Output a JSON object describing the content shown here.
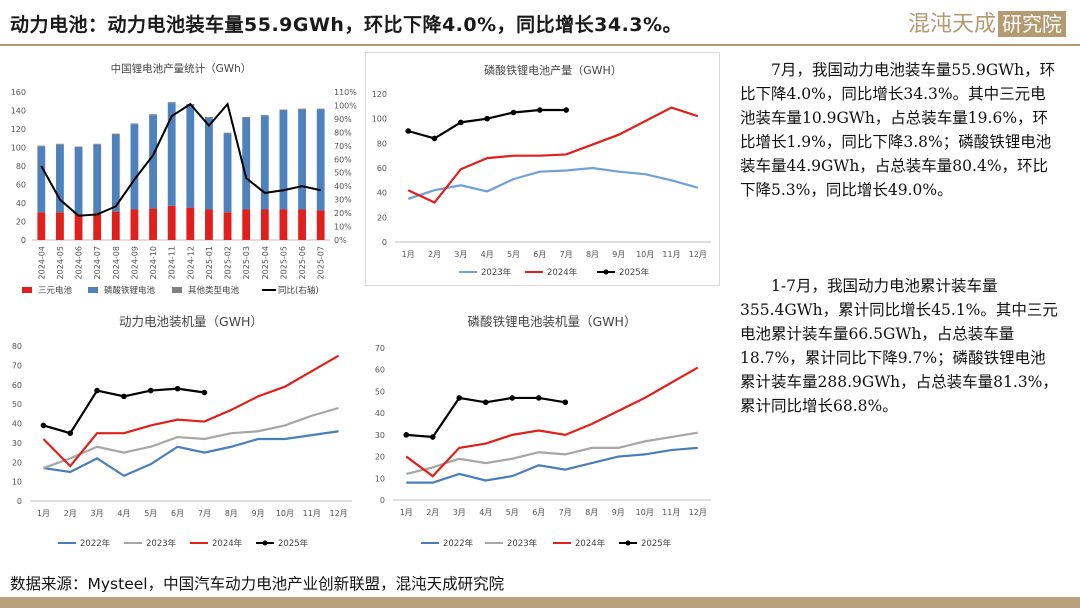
{
  "header": {
    "title": "动力电池：动力电池装车量55.9GWh，环比下降4.0%，同比增长34.3%。"
  },
  "logo": {
    "text": "混沌天成",
    "boxed": "研究院",
    "color": "#b39a70"
  },
  "commentary": {
    "p1": "7月，我国动力电池装车量55.9GWh，环比下降4.0%，同比增长34.3%。其中三元电池装车量10.9GWh，占总装车量19.6%，环比增长1.9%，同比下降3.8%；磷酸铁锂电池装车量44.9GWh，占总装车量80.4%，环比下降5.3%，同比增长49.0%。",
    "p2": "1-7月，我国动力电池累计装车量355.4GWh，累计同比增长45.1%。其中三元电池累计装车量66.5GWh，占总装车量18.7%，累计同比下降9.7%；磷酸铁锂电池累计装车量288.9GWh，占总装车量81.3%，累计同比增长68.8%。"
  },
  "source": "数据来源：Mysteel，中国汽车动力电池产业创新联盟，混沌天成研究院",
  "colors": {
    "ternary": "#e0201c",
    "lfp": "#4f81bd",
    "other": "#808080",
    "black": "#000000",
    "grey": "#a6a6a6",
    "blue": "#4a7ebb",
    "red": "#e0201c"
  },
  "chart_data": [
    {
      "id": "production",
      "type": "bar",
      "title": "中国锂电池产量统计（GWh）",
      "categories": [
        "2024-04",
        "2024-05",
        "2024-06",
        "2024-07",
        "2024-08",
        "2024-09",
        "2024-10",
        "2024-11",
        "2024-12",
        "2025-01",
        "2025-02",
        "2025-03",
        "2025-04",
        "2025-05",
        "2025-06",
        "2025-07"
      ],
      "stacked": true,
      "ylim": [
        0,
        160
      ],
      "yticks": [
        0,
        20,
        40,
        60,
        80,
        100,
        120,
        140,
        160
      ],
      "y2lim": [
        0,
        1.1
      ],
      "y2ticks": [
        "0%",
        "10%",
        "20%",
        "30%",
        "40%",
        "50%",
        "60%",
        "70%",
        "80%",
        "90%",
        "100%",
        "110%"
      ],
      "series": [
        {
          "name": "三元电池",
          "color": "#e0201c",
          "values": [
            30,
            30,
            28,
            29,
            31,
            33,
            34,
            37,
            35,
            33,
            30,
            33,
            33,
            33,
            33,
            32
          ]
        },
        {
          "name": "磷酸铁锂电池",
          "color": "#4f81bd",
          "values": [
            71,
            73,
            72,
            74,
            83,
            92,
            101,
            111,
            111,
            99,
            85,
            99,
            101,
            107,
            108,
            109
          ]
        },
        {
          "name": "其他类型电池",
          "color": "#808080",
          "values": [
            1,
            1,
            1,
            1,
            1,
            1,
            1,
            1,
            1,
            1,
            1,
            1,
            1,
            1,
            1,
            1
          ]
        }
      ],
      "line": {
        "name": "同比(右轴)",
        "color": "#000000",
        "values": [
          0.55,
          0.3,
          0.18,
          0.19,
          0.25,
          0.45,
          0.63,
          0.92,
          1.01,
          0.85,
          1.01,
          0.46,
          0.35,
          0.37,
          0.4,
          0.37
        ]
      }
    },
    {
      "id": "lfp-production",
      "type": "line",
      "title": "磷酸铁锂电池产量（GWH）",
      "categories": [
        "1月",
        "2月",
        "3月",
        "4月",
        "5月",
        "6月",
        "7月",
        "8月",
        "9月",
        "10月",
        "11月",
        "12月"
      ],
      "ylim": [
        0,
        120
      ],
      "yticks": [
        0,
        20,
        40,
        60,
        80,
        100,
        120
      ],
      "series": [
        {
          "name": "2023年",
          "color": "#6fa0d8",
          "values": [
            35,
            42,
            46,
            41,
            51,
            57,
            58,
            60,
            57,
            55,
            50,
            44
          ]
        },
        {
          "name": "2024年",
          "color": "#e0201c",
          "values": [
            42,
            32,
            59,
            68,
            70,
            70,
            71,
            79,
            87,
            98,
            109,
            102
          ]
        },
        {
          "name": "2025年",
          "color": "#000000",
          "values": [
            90,
            84,
            97,
            100,
            105,
            107,
            107,
            null,
            null,
            null,
            null,
            null
          ]
        }
      ]
    },
    {
      "id": "power-installed",
      "type": "line",
      "title": "动力电池装机量（GWH）",
      "categories": [
        "1月",
        "2月",
        "3月",
        "4月",
        "5月",
        "6月",
        "7月",
        "8月",
        "9月",
        "10月",
        "11月",
        "12月"
      ],
      "ylim": [
        0,
        80
      ],
      "yticks": [
        0,
        10,
        20,
        30,
        40,
        50,
        60,
        70,
        80
      ],
      "series": [
        {
          "name": "2022年",
          "color": "#4a7ebb",
          "values": [
            17,
            15,
            22,
            13,
            19,
            28,
            25,
            28,
            32,
            32,
            34,
            36
          ]
        },
        {
          "name": "2023年",
          "color": "#a6a6a6",
          "values": [
            17,
            22,
            28,
            25,
            28,
            33,
            32,
            35,
            36,
            39,
            44,
            48
          ]
        },
        {
          "name": "2024年",
          "color": "#e0201c",
          "values": [
            32,
            18,
            35,
            35,
            39,
            42,
            41,
            47,
            54,
            59,
            67,
            75
          ]
        },
        {
          "name": "2025年",
          "color": "#000000",
          "values": [
            39,
            35,
            57,
            54,
            57,
            58,
            56,
            null,
            null,
            null,
            null,
            null
          ]
        }
      ]
    },
    {
      "id": "lfp-installed",
      "type": "line",
      "title": "磷酸铁锂电池装机量（GWH）",
      "categories": [
        "1月",
        "2月",
        "3月",
        "4月",
        "5月",
        "6月",
        "7月",
        "8月",
        "9月",
        "10月",
        "11月",
        "12月"
      ],
      "ylim": [
        0,
        70
      ],
      "yticks": [
        0,
        10,
        20,
        30,
        40,
        50,
        60,
        70
      ],
      "series": [
        {
          "name": "2022年",
          "color": "#4a7ebb",
          "values": [
            8,
            8,
            12,
            9,
            11,
            16,
            14,
            17,
            20,
            21,
            23,
            24
          ]
        },
        {
          "name": "2023年",
          "color": "#a6a6a6",
          "values": [
            12,
            15,
            19,
            17,
            19,
            22,
            21,
            24,
            24,
            27,
            29,
            31
          ]
        },
        {
          "name": "2024年",
          "color": "#e0201c",
          "values": [
            20,
            11,
            24,
            26,
            30,
            32,
            30,
            35,
            41,
            47,
            54,
            61
          ]
        },
        {
          "name": "2025年",
          "color": "#000000",
          "values": [
            30,
            29,
            47,
            45,
            47,
            47,
            45,
            null,
            null,
            null,
            null,
            null
          ]
        }
      ]
    }
  ]
}
